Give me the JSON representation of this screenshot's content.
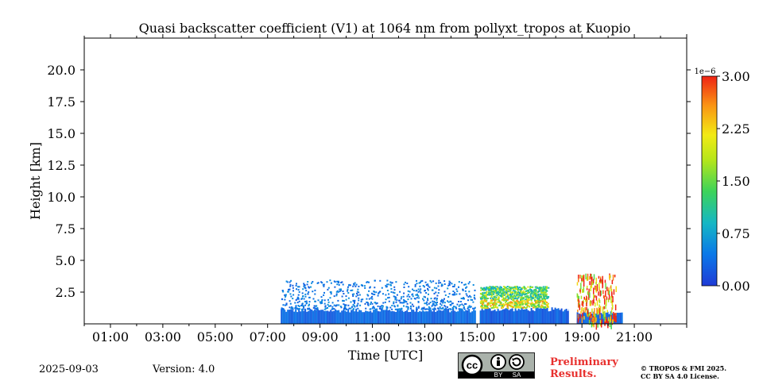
{
  "chart_data": {
    "type": "heatmap",
    "title": "Quasi backscatter coefficient (V1) at 1064 nm from pollyxt_tropos at Kuopio",
    "xlabel": "Time [UTC]",
    "ylabel": "Height [km]",
    "xlim_hours": [
      0,
      23
    ],
    "ylim_km": [
      0,
      22.5
    ],
    "x_ticks": [
      "01:00",
      "03:00",
      "05:00",
      "07:00",
      "09:00",
      "11:00",
      "13:00",
      "15:00",
      "17:00",
      "19:00",
      "21:00"
    ],
    "x_tick_hours": [
      1,
      3,
      5,
      7,
      9,
      11,
      13,
      15,
      17,
      19,
      21
    ],
    "y_ticks": [
      "2.5",
      "5.0",
      "7.5",
      "10.0",
      "12.5",
      "15.0",
      "17.5",
      "20.0"
    ],
    "y_tick_values": [
      2.5,
      5.0,
      7.5,
      10.0,
      12.5,
      15.0,
      17.5,
      20.0
    ],
    "colorbar": {
      "ticks": [
        "0.00",
        "0.75",
        "1.50",
        "2.25",
        "3.00"
      ],
      "tick_values": [
        0,
        0.75,
        1.5,
        2.25,
        3.0
      ],
      "range": [
        0,
        3.0
      ],
      "scale_label": "1e−6"
    },
    "layers": [
      {
        "name": "boundary layer",
        "start_h": 7.5,
        "end_h": 15.0,
        "base_km": 0.0,
        "top_km": 1.2,
        "value": 0.2
      },
      {
        "name": "boundary layer",
        "start_h": 15.1,
        "end_h": 18.5,
        "base_km": 0.0,
        "top_km": 1.3,
        "value": 0.15
      },
      {
        "name": "late segment",
        "start_h": 18.8,
        "end_h": 20.5,
        "base_km": 0.0,
        "top_km": 1.0,
        "value": 0.2
      },
      {
        "name": "sparse aerosol",
        "start_h": 7.5,
        "end_h": 14.9,
        "base_km": 1.2,
        "top_km": 3.5,
        "value": 0.45
      },
      {
        "name": "elevated aerosol layer",
        "start_h": 15.1,
        "end_h": 17.7,
        "base_km": 1.3,
        "top_km": 3.0,
        "value": 1.6
      },
      {
        "name": "precipitation streaks",
        "start_h": 18.8,
        "end_h": 20.3,
        "base_km": 0.0,
        "top_km": 4.0,
        "value": 2.6
      }
    ],
    "gaps_h": [
      15.0,
      18.55
    ]
  },
  "footer": {
    "date": "2025-09-03",
    "version": "Version: 4.0",
    "preliminary": "Preliminary",
    "results": "Results.",
    "copyright_line1": "© TROPOS & FMI 2025.",
    "copyright_line2": "CC BY SA 4.0 License.",
    "cc_by": "BY",
    "cc_sa": "SA",
    "cc_mark": "cc"
  }
}
